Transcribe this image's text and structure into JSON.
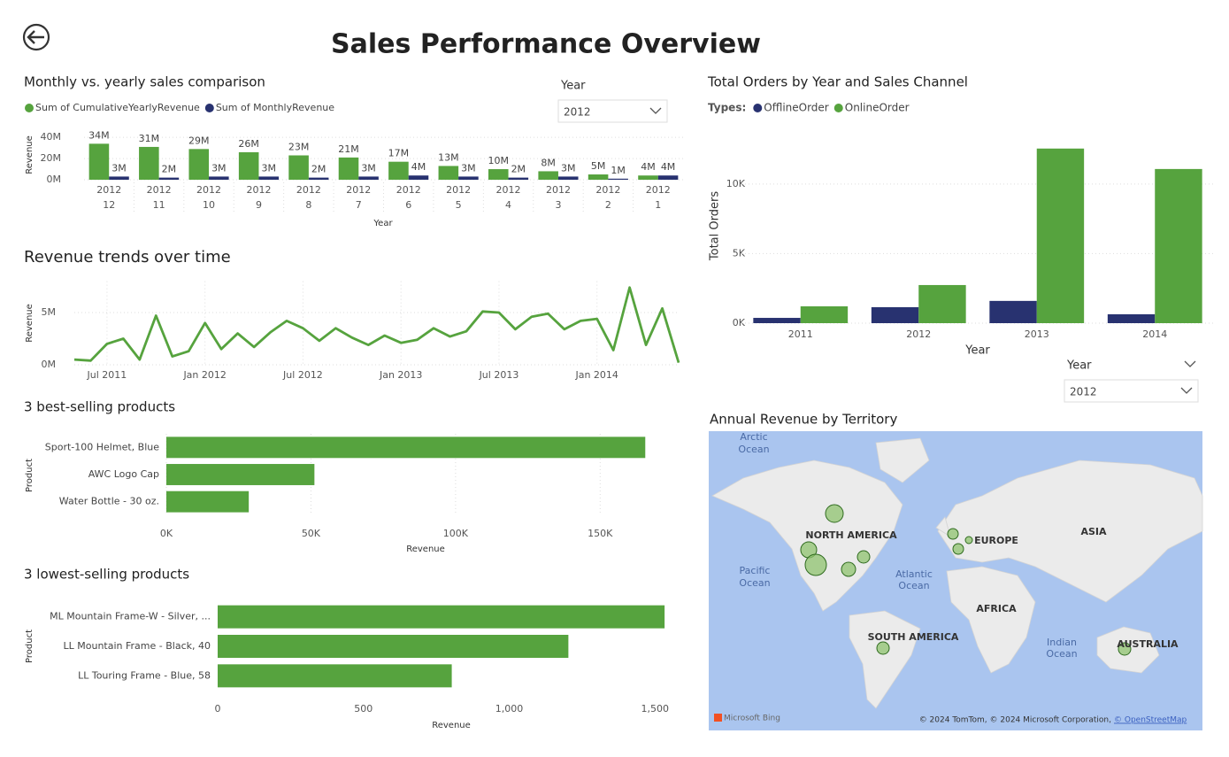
{
  "header": {
    "title": "Sales Performance Overview"
  },
  "slicers": [
    {
      "label": "Year",
      "value": "2012"
    },
    {
      "label": "Year",
      "value": "2012"
    }
  ],
  "chart_data": [
    {
      "type": "bar",
      "title": "Monthly vs. yearly sales comparison",
      "x_label": "Year",
      "y_label": "Revenue",
      "categories": [
        [
          "2012",
          "12"
        ],
        [
          "2012",
          "11"
        ],
        [
          "2012",
          "10"
        ],
        [
          "2012",
          "9"
        ],
        [
          "2012",
          "8"
        ],
        [
          "2012",
          "7"
        ],
        [
          "2012",
          "6"
        ],
        [
          "2012",
          "5"
        ],
        [
          "2012",
          "4"
        ],
        [
          "2012",
          "3"
        ],
        [
          "2012",
          "2"
        ],
        [
          "2012",
          "1"
        ]
      ],
      "series": [
        {
          "name": "Sum of CumulativeYearlyRevenue",
          "color": "#56a33e",
          "values": [
            34,
            31,
            29,
            26,
            23,
            21,
            17,
            13,
            10,
            8,
            5,
            4
          ],
          "value_labels": [
            "34M",
            "31M",
            "29M",
            "26M",
            "23M",
            "21M",
            "17M",
            "13M",
            "10M",
            "8M",
            "5M",
            "4M"
          ]
        },
        {
          "name": "Sum of MonthlyRevenue",
          "color": "#283270",
          "values": [
            3,
            2,
            3,
            3,
            2,
            3,
            4,
            3,
            2,
            3,
            1,
            4
          ],
          "value_labels": [
            "3M",
            "2M",
            "3M",
            "3M",
            "2M",
            "3M",
            "4M",
            "3M",
            "2M",
            "3M",
            "1M",
            "4M"
          ]
        }
      ],
      "ylim": [
        0,
        46
      ],
      "yticks": [
        {
          "value": 0,
          "label": "0M"
        },
        {
          "value": 20,
          "label": "20M"
        },
        {
          "value": 40,
          "label": "40M"
        }
      ],
      "grid": true
    },
    {
      "type": "line",
      "title": "Revenue trends over time",
      "y_label": "Revenue",
      "x": [
        "2011-05",
        "2011-06",
        "2011-07",
        "2011-08",
        "2011-09",
        "2011-10",
        "2011-11",
        "2011-12",
        "2012-01",
        "2012-02",
        "2012-03",
        "2012-04",
        "2012-05",
        "2012-06",
        "2012-07",
        "2012-08",
        "2012-09",
        "2012-10",
        "2012-11",
        "2012-12",
        "2013-01",
        "2013-02",
        "2013-03",
        "2013-04",
        "2013-05",
        "2013-06",
        "2013-07",
        "2013-08",
        "2013-09",
        "2013-10",
        "2013-11",
        "2013-12",
        "2014-01",
        "2014-02",
        "2014-03",
        "2014-04",
        "2014-05",
        "2014-06"
      ],
      "values": [
        0.5,
        0.4,
        2.0,
        2.5,
        0.5,
        4.7,
        0.8,
        1.3,
        4.0,
        1.5,
        3.0,
        1.7,
        3.1,
        4.2,
        3.5,
        2.3,
        3.5,
        2.6,
        1.9,
        2.8,
        2.1,
        2.4,
        3.5,
        2.7,
        3.2,
        5.1,
        5.0,
        3.4,
        4.6,
        4.9,
        3.4,
        4.2,
        4.4,
        1.4,
        7.4,
        1.9,
        5.4,
        0.2
      ],
      "color": "#56a33e",
      "xlim": [
        "2011-05",
        "2014-06"
      ],
      "xticks": [
        {
          "value": "2011-07",
          "label": "Jul 2011"
        },
        {
          "value": "2012-01",
          "label": "Jan 2012"
        },
        {
          "value": "2012-07",
          "label": "Jul 2012"
        },
        {
          "value": "2013-01",
          "label": "Jan 2013"
        },
        {
          "value": "2013-07",
          "label": "Jul 2013"
        },
        {
          "value": "2014-01",
          "label": "Jan 2014"
        }
      ],
      "ylim": [
        0,
        8
      ],
      "yticks": [
        {
          "value": 0,
          "label": "0M"
        },
        {
          "value": 5,
          "label": "5M"
        }
      ],
      "grid": true
    },
    {
      "type": "barh",
      "title": "3 best-selling products",
      "x_label": "Revenue",
      "y_label": "Product",
      "categories": [
        "Sport-100 Helmet, Blue",
        "AWC Logo Cap",
        "Water Bottle - 30 oz."
      ],
      "values": [
        165.6,
        51.2,
        28.5
      ],
      "color": "#56a33e",
      "xlim": [
        0,
        175
      ],
      "xticks": [
        {
          "value": 0,
          "label": "0K"
        },
        {
          "value": 50,
          "label": "50K"
        },
        {
          "value": 100,
          "label": "100K"
        },
        {
          "value": 150,
          "label": "150K"
        }
      ],
      "grid": true
    },
    {
      "type": "barh",
      "title": "3 lowest-selling products",
      "x_label": "Revenue",
      "y_label": "Product",
      "categories": [
        "ML Mountain Frame-W - Silver, ...",
        "LL Mountain Frame - Black, 40",
        "LL Touring Frame - Blue, 58"
      ],
      "values": [
        1533,
        1203,
        803
      ],
      "color": "#56a33e",
      "xlim": [
        0,
        1560
      ],
      "xticks": [
        0,
        500,
        {
          "value": 1000,
          "label": "1,000"
        },
        {
          "value": 1500,
          "label": "1,500"
        }
      ],
      "grid": false
    },
    {
      "type": "bar",
      "title": "Total Orders by Year and Sales Channel",
      "x_label": "Year",
      "y_label": "Total Orders",
      "legend_title": "Types:",
      "categories": [
        "2011",
        "2012",
        "2013",
        "2014"
      ],
      "series": [
        {
          "name": "OfflineOrder",
          "color": "#283270",
          "values": [
            380,
            1150,
            1600,
            640
          ]
        },
        {
          "name": "OnlineOrder",
          "color": "#56a33e",
          "values": [
            1210,
            2740,
            12550,
            11080
          ]
        }
      ],
      "ylim": [
        0,
        14000
      ],
      "yticks": [
        {
          "value": 0,
          "label": "0K"
        },
        {
          "value": 5000,
          "label": "5K"
        },
        {
          "value": 10000,
          "label": "10K"
        }
      ],
      "grid": true
    }
  ],
  "map": {
    "title": "Annual Revenue by Territory",
    "labels": [
      "Arctic",
      "Ocean",
      "NORTH AMERICA",
      "EUROPE",
      "ASIA",
      "Pacific",
      "Ocean",
      "Atlantic",
      "Ocean",
      "AFRICA",
      "SOUTH AMERICA",
      "Indian",
      "Ocean",
      "AUSTRALIA"
    ],
    "logo": "Microsoft Bing",
    "attribution": "© 2024 TomTom, © 2024 Microsoft Corporation,",
    "link": "© OpenStreetMap"
  }
}
